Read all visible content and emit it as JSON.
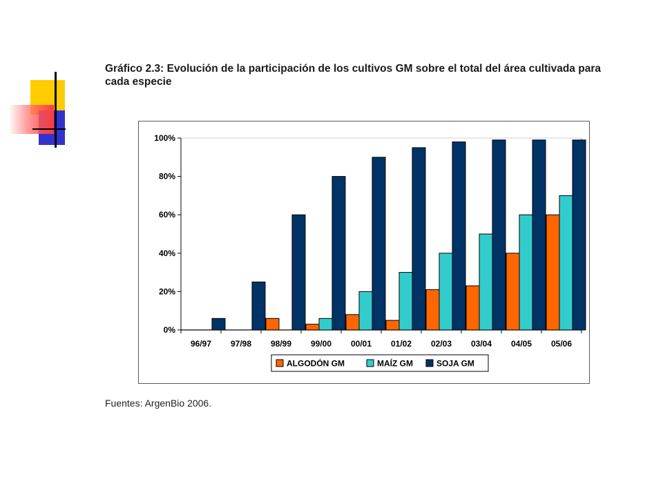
{
  "caption": "Gráfico 2.3: Evolución de la participación de los cultivos GM sobre el total del área cultivada para cada especie",
  "source": "Fuentes: ArgenBio 2006.",
  "chart_data": {
    "type": "bar",
    "categories": [
      "96/97",
      "97/98",
      "98/99",
      "99/00",
      "00/01",
      "01/02",
      "02/03",
      "03/04",
      "04/05",
      "05/06"
    ],
    "series": [
      {
        "name": "ALGODÓN GM",
        "color": "#ff6600",
        "values": [
          0,
          0,
          6,
          3,
          8,
          5,
          21,
          23,
          40,
          60
        ]
      },
      {
        "name": "MAÍZ GM",
        "color": "#33cccc",
        "values": [
          0,
          0,
          0,
          6,
          20,
          30,
          40,
          50,
          60,
          70
        ]
      },
      {
        "name": "SOJA GM",
        "color": "#003366",
        "values": [
          6,
          25,
          60,
          80,
          90,
          95,
          98,
          99,
          99,
          99
        ]
      }
    ],
    "ylim": [
      0,
      100
    ],
    "yticks": [
      "0%",
      "20%",
      "40%",
      "60%",
      "80%",
      "100%"
    ],
    "grid": false,
    "legend_position": "bottom"
  }
}
